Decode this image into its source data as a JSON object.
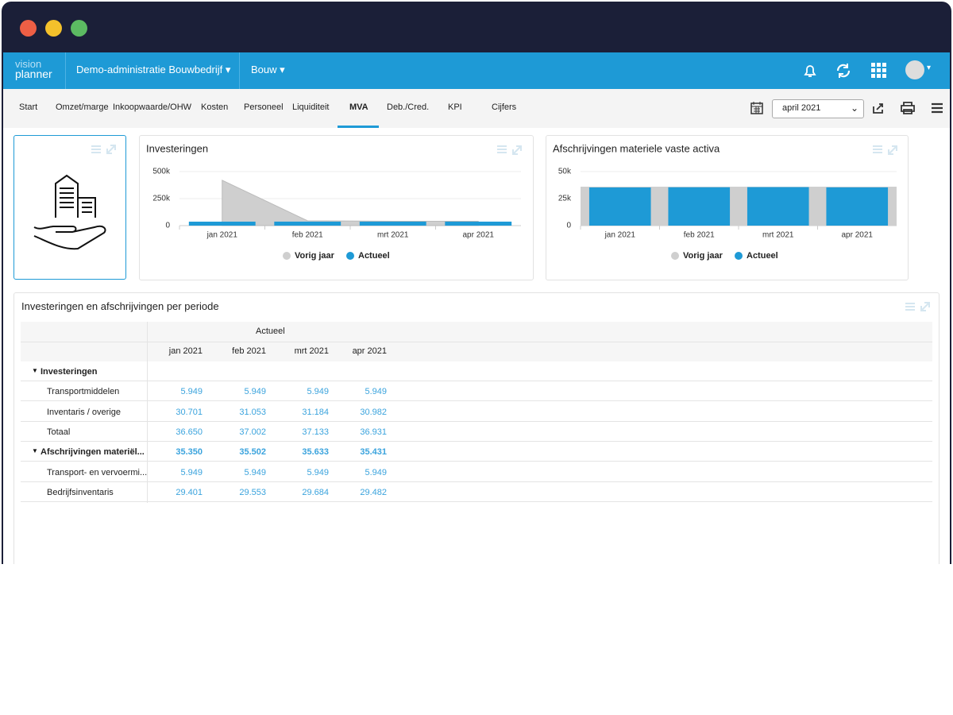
{
  "nav": {
    "logo_top": "vision",
    "logo_bottom": "planner",
    "administration": "Demo-administratie Bouwbedrijf",
    "branch": "Bouw"
  },
  "tabs": [
    "Start",
    "Omzet/marge",
    "Inkoopwaarde/OHW",
    "Kosten",
    "Personeel",
    "Liquiditeit",
    "MVA",
    "Deb./Cred.",
    "KPI",
    "Cijfers"
  ],
  "period": "april 2021",
  "chart_data": [
    {
      "type": "bar",
      "title": "Investeringen",
      "categories": [
        "jan 2021",
        "feb 2021",
        "mrt 2021",
        "apr 2021"
      ],
      "series": [
        {
          "name": "Vorig jaar",
          "color": "#cfcfcf",
          "style": "area",
          "values": [
            420000,
            45000,
            40000,
            40000
          ]
        },
        {
          "name": "Actueel",
          "color": "#1e9ad6",
          "style": "bar",
          "values": [
            36650,
            37002,
            37133,
            36931
          ]
        }
      ],
      "ylim": [
        0,
        500000
      ],
      "yticks": [
        0,
        {
          "value": 250000,
          "label": "250k"
        },
        {
          "value": 500000,
          "label": "500k"
        }
      ],
      "grid": true
    },
    {
      "type": "bar",
      "title": "Afschrijvingen materiele vaste activa",
      "categories": [
        "jan 2021",
        "feb 2021",
        "mrt 2021",
        "apr 2021"
      ],
      "series": [
        {
          "name": "Vorig jaar",
          "color": "#cfcfcf",
          "style": "wide-bar",
          "values": [
            36000,
            36000,
            36000,
            36000
          ]
        },
        {
          "name": "Actueel",
          "color": "#1e9ad6",
          "style": "bar",
          "values": [
            35350,
            35502,
            35633,
            35431
          ]
        }
      ],
      "ylim": [
        0,
        50000
      ],
      "yticks": [
        0,
        {
          "value": 25000,
          "label": "25k"
        },
        {
          "value": 50000,
          "label": "50k"
        }
      ],
      "grid": true
    }
  ],
  "table": {
    "title": "Investeringen en afschrijvingen per periode",
    "group_header": "Actueel",
    "columns": [
      "jan 2021",
      "feb 2021",
      "mrt 2021",
      "apr 2021"
    ],
    "rows": [
      {
        "label": "Investeringen",
        "group": true,
        "values": []
      },
      {
        "label": "Transportmiddelen",
        "group": false,
        "values": [
          "5.949",
          "5.949",
          "5.949",
          "5.949"
        ]
      },
      {
        "label": "Inventaris / overige",
        "group": false,
        "values": [
          "30.701",
          "31.053",
          "31.184",
          "30.982"
        ]
      },
      {
        "label": "Totaal",
        "group": false,
        "values": [
          "36.650",
          "37.002",
          "37.133",
          "36.931"
        ]
      },
      {
        "label": "Afschrijvingen materiël...",
        "group": true,
        "values": [
          "35.350",
          "35.502",
          "35.633",
          "35.431"
        ]
      },
      {
        "label": "Transport- en vervoermi...",
        "group": false,
        "values": [
          "5.949",
          "5.949",
          "5.949",
          "5.949"
        ]
      },
      {
        "label": "Bedrijfsinventaris",
        "group": false,
        "values": [
          "29.401",
          "29.553",
          "29.684",
          "29.482"
        ]
      }
    ]
  }
}
